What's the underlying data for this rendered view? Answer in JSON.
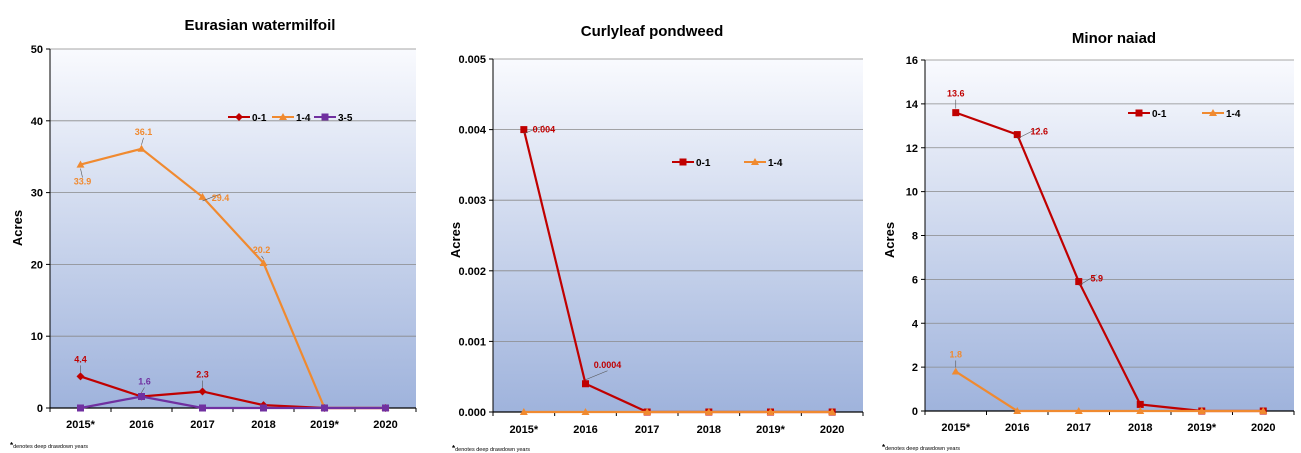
{
  "footnote": {
    "star": "*",
    "text": "denotes deep drawdown years"
  },
  "colors": {
    "c01": "#c00000",
    "c14": "#f08a30",
    "c35": "#7030a0"
  },
  "chart_data": [
    {
      "type": "line",
      "title": "Eurasian watermilfoil",
      "ylabel": "Acres",
      "categories": [
        "2015*",
        "2016",
        "2017",
        "2018",
        "2019*",
        "2020"
      ],
      "ylim": [
        0,
        50
      ],
      "yticks": [
        "0",
        "10",
        "20",
        "30",
        "40",
        "50"
      ],
      "grid": true,
      "legend": "upper-right",
      "series": [
        {
          "name": "0-1",
          "marker": "diamond",
          "color": "#c00000",
          "values": [
            4.4,
            1.6,
            2.3,
            0.4,
            0,
            0
          ],
          "labels": [
            "4.4",
            "",
            "2.3",
            "",
            "",
            ""
          ]
        },
        {
          "name": "1-4",
          "marker": "triangle",
          "color": "#f08a30",
          "values": [
            33.9,
            36.1,
            29.4,
            20.2,
            0,
            0
          ],
          "labels": [
            "33.9",
            "36.1",
            "29.4",
            "20.2",
            "",
            ""
          ]
        },
        {
          "name": "3-5",
          "marker": "square",
          "color": "#7030a0",
          "values": [
            0,
            1.6,
            0,
            0,
            0,
            0
          ],
          "labels": [
            "",
            "1.6",
            "",
            "",
            "",
            ""
          ]
        }
      ]
    },
    {
      "type": "line",
      "title": "Curlyleaf pondweed",
      "ylabel": "Acres",
      "categories": [
        "2015*",
        "2016",
        "2017",
        "2018",
        "2019*",
        "2020"
      ],
      "ylim": [
        0,
        0.005
      ],
      "yticks": [
        "0.000",
        "0.001",
        "0.002",
        "0.003",
        "0.004",
        "0.005"
      ],
      "grid": true,
      "legend": "upper-right",
      "series": [
        {
          "name": "0-1",
          "marker": "square",
          "color": "#c00000",
          "values": [
            0.004,
            0.0004,
            0,
            0,
            0,
            0
          ],
          "labels": [
            "0.004",
            "0.0004",
            "",
            "",
            "",
            ""
          ]
        },
        {
          "name": "1-4",
          "marker": "triangle",
          "color": "#f08a30",
          "values": [
            0,
            0,
            0,
            0,
            0,
            0
          ],
          "labels": [
            "",
            "",
            "",
            "",
            "",
            ""
          ]
        }
      ]
    },
    {
      "type": "line",
      "title": "Minor naiad",
      "ylabel": "Acres",
      "categories": [
        "2015*",
        "2016",
        "2017",
        "2018",
        "2019*",
        "2020"
      ],
      "ylim": [
        0,
        16
      ],
      "yticks": [
        "0",
        "2",
        "4",
        "6",
        "8",
        "10",
        "12",
        "14",
        "16"
      ],
      "grid": true,
      "legend": "upper-right",
      "series": [
        {
          "name": "0-1",
          "marker": "square",
          "color": "#c00000",
          "values": [
            13.6,
            12.6,
            5.9,
            0.3,
            0,
            0
          ],
          "labels": [
            "13.6",
            "12.6",
            "5.9",
            "",
            "",
            ""
          ]
        },
        {
          "name": "1-4",
          "marker": "triangle",
          "color": "#f08a30",
          "values": [
            1.8,
            0,
            0,
            0,
            0,
            0
          ],
          "labels": [
            "1.8",
            "",
            "",
            "",
            "",
            ""
          ]
        }
      ]
    }
  ]
}
